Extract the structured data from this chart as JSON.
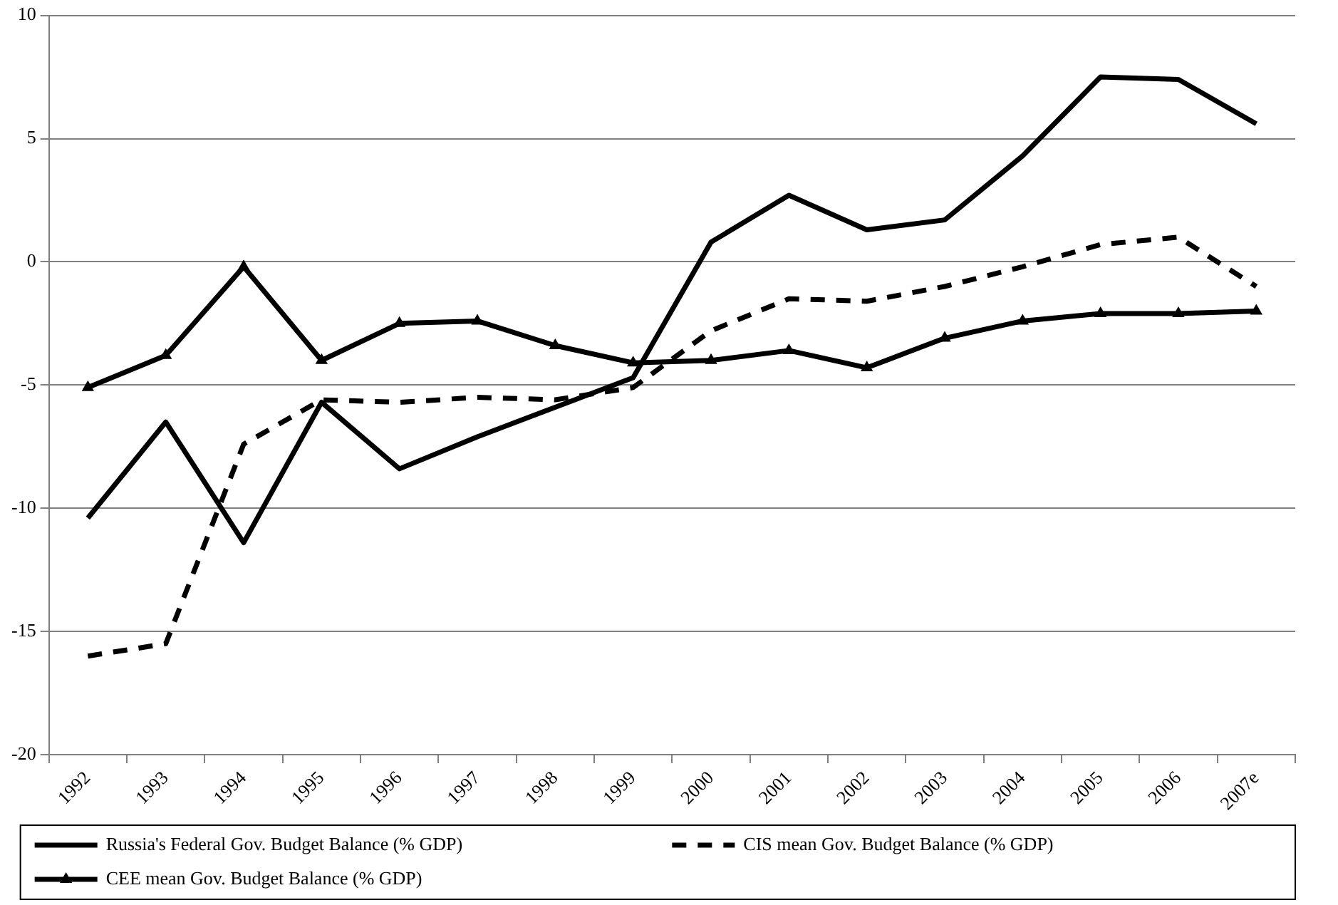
{
  "chart_data": {
    "type": "line",
    "categories": [
      "1992",
      "1993",
      "1994",
      "1995",
      "1996",
      "1997",
      "1998",
      "1999",
      "2000",
      "2001",
      "2002",
      "2003",
      "2004",
      "2005",
      "2006",
      "2007e"
    ],
    "series": [
      {
        "name": "Russia's Federal Gov. Budget Balance (% GDP)",
        "color": "#000000",
        "marker": "none",
        "line_style": "solid",
        "values": [
          -10.4,
          -6.5,
          -11.4,
          -5.7,
          -8.4,
          -7.1,
          -5.9,
          -4.7,
          0.8,
          2.7,
          1.3,
          1.7,
          4.3,
          7.5,
          7.4,
          5.6
        ]
      },
      {
        "name": "CIS mean Gov. Budget Balance (% GDP)",
        "color": "#000000",
        "marker": "none",
        "line_style": "dashed",
        "values": [
          -16.0,
          -15.5,
          -7.4,
          -5.6,
          -5.7,
          -5.5,
          -5.6,
          -5.1,
          -2.8,
          -1.5,
          -1.6,
          -1.0,
          -0.2,
          0.7,
          1.0,
          -1.0
        ]
      },
      {
        "name": "CEE mean Gov. Budget Balance (% GDP)",
        "color": "#000000",
        "marker": "triangle",
        "line_style": "solid",
        "values": [
          -5.1,
          -3.8,
          -0.2,
          -4.0,
          -2.5,
          -2.4,
          -3.4,
          -4.1,
          -4.0,
          -3.6,
          -4.3,
          -3.1,
          -2.4,
          -2.1,
          -2.1,
          -2.0
        ]
      }
    ],
    "ylim": [
      -20,
      10
    ],
    "yticks": [
      -20,
      -15,
      -10,
      -5,
      0,
      5,
      10
    ],
    "grid": "y",
    "legend": "bottom"
  }
}
